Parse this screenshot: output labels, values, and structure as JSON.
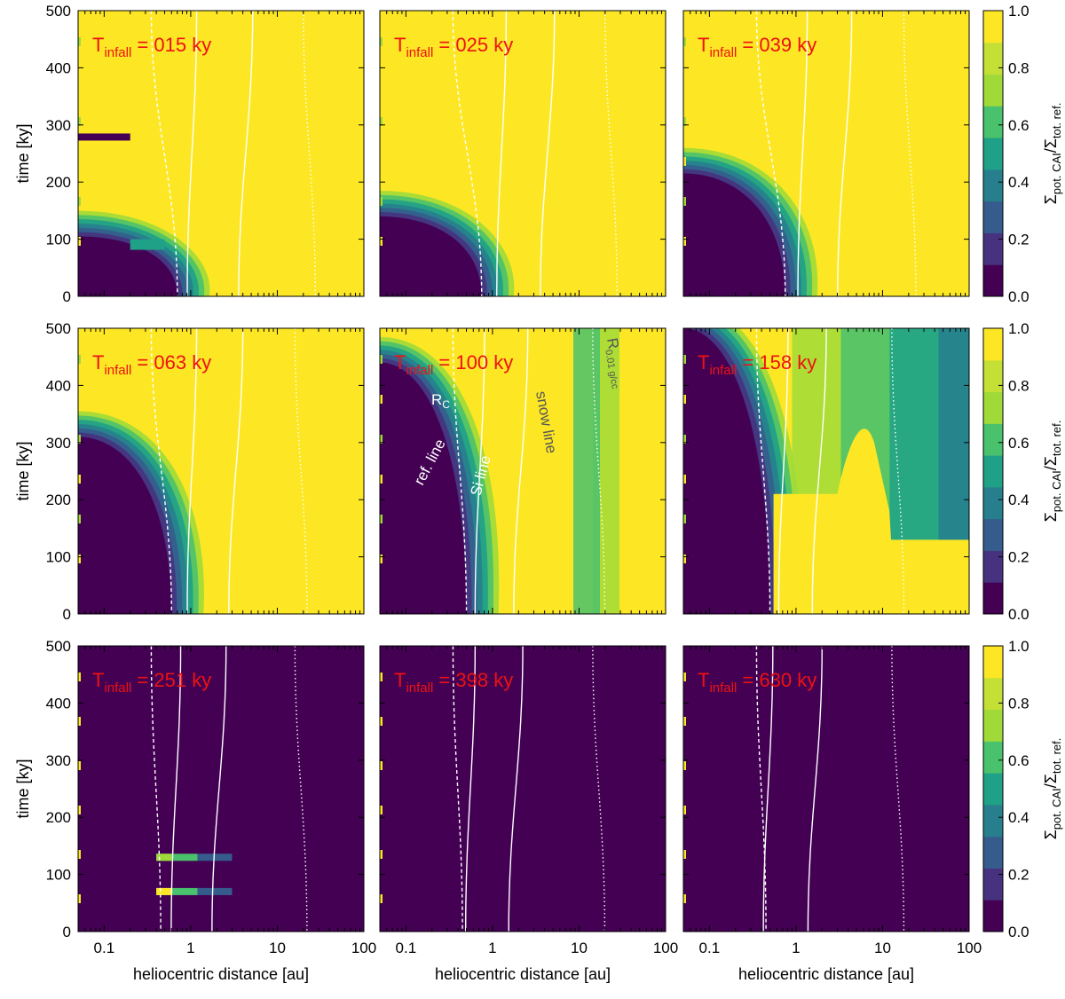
{
  "colors": {
    "scale": [
      "#440154",
      "#46327e",
      "#365c8d",
      "#277f8e",
      "#1fa187",
      "#4ac16d",
      "#a0da39",
      "#c4df36",
      "#fde725"
    ],
    "title": "#ee1111",
    "bg_low": "#440154",
    "bg_high": "#fde725",
    "line": "#ffffff"
  },
  "chart_data": {
    "type": "heatmap",
    "layout": "3x3 grid of panels, colorbar to the right of each row",
    "x_axis": {
      "label": "heliocentric distance [au]",
      "scale": "log",
      "range": [
        0.05,
        100
      ],
      "ticks": [
        "0.1",
        "1",
        "10",
        "100"
      ]
    },
    "y_axis": {
      "label": "time [ky]",
      "range": [
        0,
        500
      ],
      "ticks": [
        "0",
        "100",
        "200",
        "300",
        "400",
        "500"
      ]
    },
    "colorbar": {
      "label_main": "Σ",
      "label_sub1": "pot. CAI",
      "label_sep": "/Σ",
      "label_sub2": "tot. ref.",
      "range": [
        0,
        1
      ],
      "ticks": [
        "0.0",
        "0.2",
        "0.4",
        "0.6",
        "0.8",
        "1.0"
      ],
      "levels": 9
    },
    "panels": [
      {
        "title_main": "T",
        "title_sub": "infall",
        "title_rest": " = 015 ky",
        "infall_ky": 15,
        "background": "high",
        "cai_region_top_ky": 105,
        "cai_region_edge_au": 0.7,
        "rc_au": 1.3,
        "si_au": 6.5,
        "snow_au": 25
      },
      {
        "title_main": "T",
        "title_sub": "infall",
        "title_rest": " = 025 ky",
        "infall_ky": 25,
        "background": "high",
        "cai_region_top_ky": 140,
        "cai_region_edge_au": 0.75,
        "rc_au": 1.6,
        "si_au": 6.5,
        "snow_au": 25
      },
      {
        "title_main": "T",
        "title_sub": "infall",
        "title_rest": " = 039 ky",
        "infall_ky": 39,
        "background": "high",
        "cai_region_top_ky": 215,
        "cai_region_edge_au": 0.75,
        "rc_au": 1.5,
        "si_au": 5.5,
        "snow_au": 22
      },
      {
        "title_main": "T",
        "title_sub": "infall",
        "title_rest": " = 063 ky",
        "infall_ky": 63,
        "background": "high",
        "cai_region_top_ky": 310,
        "cai_region_edge_au": 0.6,
        "rc_au": 1.3,
        "si_au": 5,
        "snow_au": 20
      },
      {
        "title_main": "T",
        "title_sub": "infall",
        "title_rest": " = 100 ky",
        "infall_ky": 100,
        "background": "high",
        "cai_region_top_ky": 440,
        "cai_region_edge_au": 0.5,
        "rc_au": 0.9,
        "si_au": 3.2,
        "snow_au": 18,
        "annotations": {
          "rc": "R",
          "rc_sub": "C",
          "ref": "ref. line",
          "si": "Si line",
          "snow": "snow line",
          "r001": "R",
          "r001_sub": "0.01 g/cc"
        }
      },
      {
        "title_main": "T",
        "title_sub": "infall",
        "title_rest": " = 158 ky",
        "infall_ky": 158,
        "background": "high",
        "cai_region_top_ky": 500,
        "cai_region_edge_au": 0.5,
        "rc_au": 0.9,
        "si_au": 2.8,
        "snow_au": 16
      },
      {
        "title_main": "T",
        "title_sub": "infall",
        "title_rest": " = 251 ky",
        "infall_ky": 251,
        "background": "low",
        "stripes_ky": [
          130,
          70
        ],
        "rc_au": 0.85,
        "si_au": 3.2,
        "snow_au": 20
      },
      {
        "title_main": "T",
        "title_sub": "infall",
        "title_rest": " = 398 ky",
        "infall_ky": 398,
        "background": "low",
        "rc_au": 0.7,
        "si_au": 2.8,
        "snow_au": 18
      },
      {
        "title_main": "T",
        "title_sub": "infall",
        "title_rest": " = 630 ky",
        "infall_ky": 630,
        "background": "low",
        "rc_au": 0.6,
        "si_au": 2.5,
        "snow_au": 16
      }
    ]
  }
}
